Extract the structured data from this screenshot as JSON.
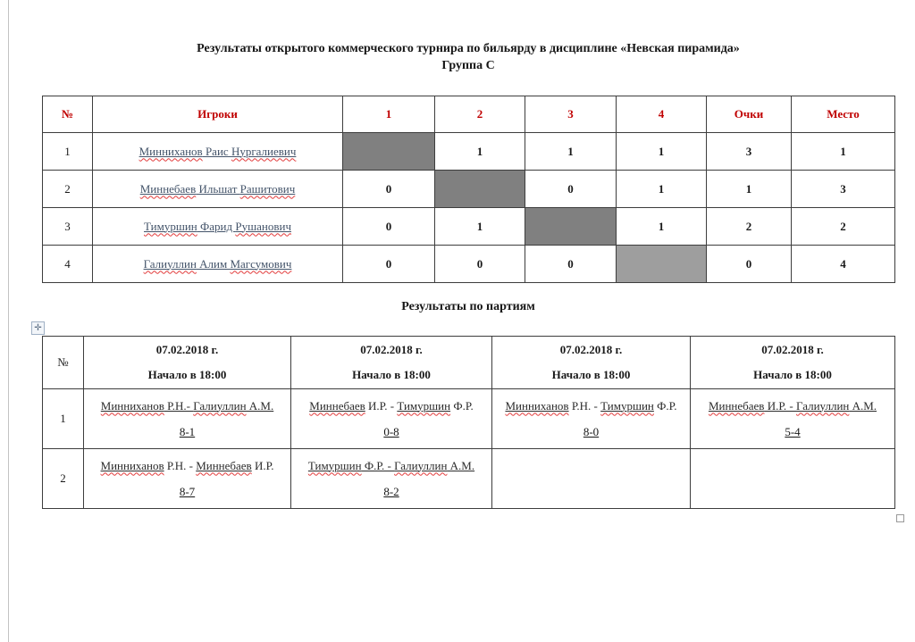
{
  "page": {
    "title_line1": "Результаты открытого коммерческого турнира по бильярду в дисциплине «Невская пирамида»",
    "title_line2": "Группа C"
  },
  "colors": {
    "header_red": "#C00000",
    "diagonal_dark": "#808080",
    "diagonal_light": "#9E9E9E",
    "player_name_blue": "#44546A",
    "spellcheck_red": "#E23B3B"
  },
  "icons": {
    "move_handle_glyph": "✛",
    "move_handle_name": "table-move-handle",
    "resize_handle_name": "table-resize-handle"
  },
  "standings": {
    "headers": [
      "№",
      "Игроки",
      "1",
      "2",
      "3",
      "4",
      "Очки",
      "Место"
    ],
    "rows": [
      {
        "num": "1",
        "name": [
          {
            "t": "Минниханов",
            "u": true,
            "sp": true
          },
          {
            "t": " Раис ",
            "u": true
          },
          {
            "t": "Нургалиевич",
            "u": true,
            "sp": true
          }
        ],
        "results": [
          "",
          "1",
          "1",
          "1"
        ],
        "points": "3",
        "place": "1"
      },
      {
        "num": "2",
        "name": [
          {
            "t": "Миннебаев",
            "u": true,
            "sp": true
          },
          {
            "t": " Ильшат ",
            "u": true
          },
          {
            "t": "Рашитович",
            "u": true,
            "sp": true
          }
        ],
        "results": [
          "0",
          "",
          "0",
          "1"
        ],
        "points": "1",
        "place": "3"
      },
      {
        "num": "3",
        "name": [
          {
            "t": "Тимуршин",
            "u": true,
            "sp": true
          },
          {
            "t": " Фарид ",
            "u": true
          },
          {
            "t": "Рушанович",
            "u": true,
            "sp": true
          }
        ],
        "results": [
          "0",
          "1",
          "",
          "1"
        ],
        "points": "2",
        "place": "2"
      },
      {
        "num": "4",
        "name": [
          {
            "t": "Галиуллин",
            "u": true,
            "sp": true
          },
          {
            "t": " Алим ",
            "u": true
          },
          {
            "t": "Магсумович",
            "u": true,
            "sp": true
          }
        ],
        "results": [
          "0",
          "0",
          "0",
          ""
        ],
        "points": "0",
        "place": "4"
      }
    ]
  },
  "games": {
    "heading": "Результаты по партиям",
    "corner": "№",
    "sessions": [
      {
        "date": "07.02.2018 г.",
        "time": "Начало в 18:00"
      },
      {
        "date": "07.02.2018 г.",
        "time": "Начало в 18:00"
      },
      {
        "date": "07.02.2018 г.",
        "time": "Начало в 18:00"
      },
      {
        "date": "07.02.2018 г.",
        "time": "Начало в 18:00"
      }
    ],
    "rows": [
      {
        "num": "1",
        "cells": [
          {
            "pair": [
              {
                "t": "Минниханов",
                "u": true,
                "sp": true
              },
              {
                "t": " Р.Н.- ",
                "u": true
              },
              {
                "t": "Галиуллин",
                "u": true,
                "sp": true
              },
              {
                "t": " А.М.",
                "u": true
              }
            ],
            "score": "8-1"
          },
          {
            "pair": [
              {
                "t": "Миннебаев",
                "u": true,
                "sp": true
              },
              {
                "t": " И.Р. - "
              },
              {
                "t": "Тимуршин",
                "u": true,
                "sp": true
              },
              {
                "t": " Ф.Р."
              }
            ],
            "score": "0-8"
          },
          {
            "pair": [
              {
                "t": "Минниханов",
                "u": true,
                "sp": true
              },
              {
                "t": " Р.Н. - "
              },
              {
                "t": "Тимуршин",
                "u": true,
                "sp": true
              },
              {
                "t": " Ф.Р."
              }
            ],
            "score": "8-0"
          },
          {
            "pair": [
              {
                "t": "Миннебаев",
                "u": true,
                "sp": true
              },
              {
                "t": " И.Р. - ",
                "u": true
              },
              {
                "t": "Галиуллин",
                "u": true,
                "sp": true
              },
              {
                "t": " А.М.",
                "u": true
              }
            ],
            "score": "5-4"
          }
        ]
      },
      {
        "num": "2",
        "cells": [
          {
            "pair": [
              {
                "t": "Минниханов",
                "u": true,
                "sp": true
              },
              {
                "t": " Р.Н. - "
              },
              {
                "t": "Миннебаев",
                "u": true,
                "sp": true
              },
              {
                "t": " И.Р."
              }
            ],
            "score": "8-7"
          },
          {
            "pair": [
              {
                "t": "Тимуршин",
                "u": true,
                "sp": true
              },
              {
                "t": " Ф.Р. - ",
                "u": true
              },
              {
                "t": "Галиуллин",
                "u": true,
                "sp": true
              },
              {
                "t": " А.М.",
                "u": true
              }
            ],
            "score": "8-2"
          },
          null,
          null
        ]
      }
    ]
  }
}
